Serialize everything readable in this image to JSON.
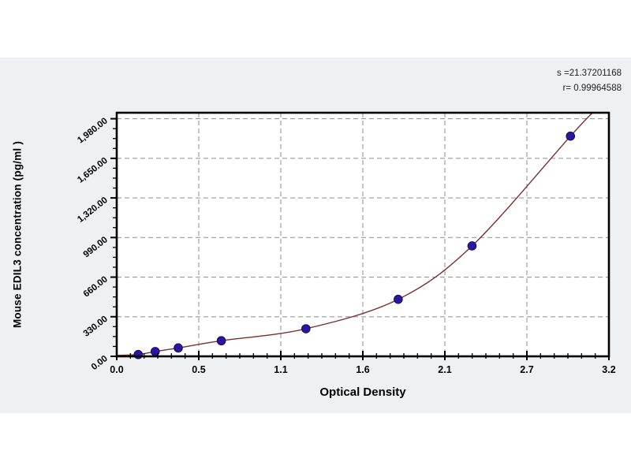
{
  "chart_data": {
    "type": "scatter",
    "title": "",
    "xlabel": "Optical Density",
    "ylabel": "Mouse EDIL3 concentration (pg/ml )",
    "xlim": [
      0,
      3.2
    ],
    "ylim": [
      0,
      2030
    ],
    "grid": "dashed",
    "legend": "none",
    "x_ticks": [
      {
        "v": 0,
        "label": "0.0"
      },
      {
        "v": 0.5333,
        "label": "0.5"
      },
      {
        "v": 1.0667,
        "label": "1.1"
      },
      {
        "v": 1.6,
        "label": "1.6"
      },
      {
        "v": 2.1333,
        "label": "2.1"
      },
      {
        "v": 2.6667,
        "label": "2.7"
      },
      {
        "v": 3.2,
        "label": "3.2"
      }
    ],
    "y_ticks": [
      {
        "v": 0,
        "label": "0.00"
      },
      {
        "v": 330,
        "label": "330.00"
      },
      {
        "v": 660,
        "label": "660.00"
      },
      {
        "v": 990,
        "label": "990.00"
      },
      {
        "v": 1320,
        "label": "1,320.00"
      },
      {
        "v": 1650,
        "label": "1,650.00"
      },
      {
        "v": 1980,
        "label": "1,980.00"
      }
    ],
    "x_minor_divisions": 6,
    "y_minor_divisions": 4,
    "series": [
      {
        "name": "standard-points",
        "points": [
          [
            0.14,
            15
          ],
          [
            0.25,
            40
          ],
          [
            0.4,
            70
          ],
          [
            0.68,
            130
          ],
          [
            1.23,
            230
          ],
          [
            1.83,
            475
          ],
          [
            2.31,
            920
          ],
          [
            2.95,
            1835
          ]
        ]
      }
    ],
    "curve": {
      "start": [
        0,
        8
      ],
      "end": [
        3.09,
        2026
      ]
    },
    "annotations": [
      "s =21.37201168",
      "r= 0.99964588"
    ],
    "colors": {
      "curve": "#7a2e2e",
      "marker_fill": "#2c16a0",
      "marker_stroke": "#150a66",
      "grid": "#999999",
      "frame": "#000000",
      "canvas": "#eff0f1",
      "plot_bg": "#ffffff",
      "tick": "#000000"
    }
  }
}
